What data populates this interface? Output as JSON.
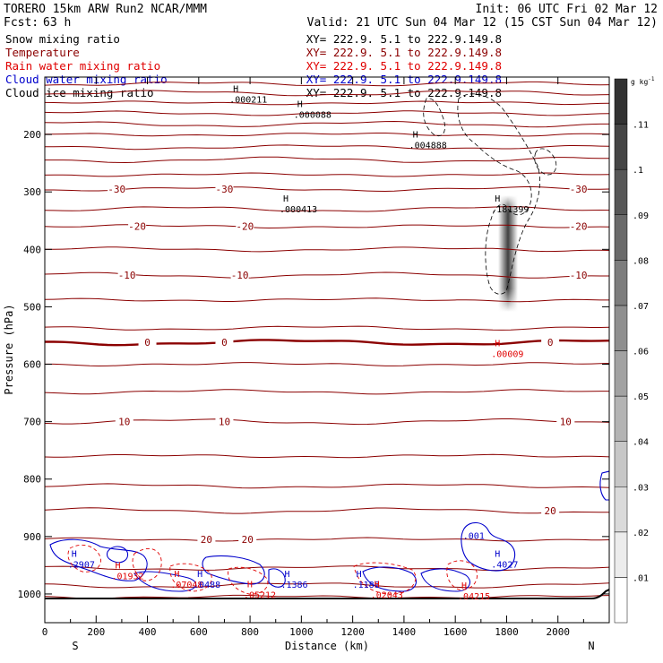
{
  "header": {
    "model": "TORERO  15km ARW   Run2    NCAR/MMM",
    "init": "Init: 06 UTC Fri 02 Mar 12",
    "fcst_label": "Fcst:",
    "fcst_value": "63 h",
    "valid": "Valid: 21 UTC Sun 04 Mar 12 (15 CST Sun 04 Mar 12)"
  },
  "legend": [
    {
      "label": "Snow mixing ratio",
      "xy": "XY= 222.9.  5.1 to 222.9.149.8",
      "color": "#000000"
    },
    {
      "label": "Temperature",
      "xy": "XY= 222.9.  5.1 to 222.9.149.8",
      "color": "#8b0000"
    },
    {
      "label": "Rain water mixing ratio",
      "xy": "XY= 222.9.  5.1 to 222.9.149.8",
      "color": "#e00000"
    },
    {
      "label": "Cloud water mixing ratio",
      "xy": "XY= 222.9.  5.1 to 222.9.149.8",
      "color": "#0000cc"
    },
    {
      "label": "Cloud ice mixing ratio",
      "xy": "XY= 222.9.  5.1 to 222.9.149.8",
      "color": "#000000"
    }
  ],
  "colors": {
    "temperature": "#8b0000",
    "rain": "#e00000",
    "cloud_water": "#0000cc",
    "black": "#000000"
  },
  "chart_data": {
    "type": "contour",
    "xlabel": "Distance (km)",
    "ylabel": "Pressure (hPa)",
    "xlim": [
      0,
      2200
    ],
    "ylim": [
      1050,
      100
    ],
    "x_ticks": [
      0,
      200,
      400,
      600,
      800,
      1000,
      1200,
      1400,
      1600,
      1800,
      2000
    ],
    "y_ticks": [
      200,
      300,
      400,
      500,
      600,
      700,
      800,
      900,
      1000
    ],
    "x_end_labels": {
      "left": "S",
      "right": "N"
    },
    "colorbar": {
      "unit": "g kg",
      "unit_exp": "-1",
      "ticks": [
        ".01",
        ".02",
        ".03",
        ".04",
        ".05",
        ".06",
        ".07",
        ".08",
        ".09",
        ".1",
        ".11"
      ],
      "tick_values": [
        0.01,
        0.02,
        0.03,
        0.04,
        0.05,
        0.06,
        0.07,
        0.08,
        0.09,
        0.1,
        0.11
      ]
    },
    "temperature_contours": [
      {
        "p": 95
      },
      {
        "p": 112
      },
      {
        "p": 128
      },
      {
        "p": 145
      },
      {
        "p": 163
      },
      {
        "p": 182
      },
      {
        "p": 200
      },
      {
        "p": 222
      },
      {
        "p": 244
      },
      {
        "p": 270
      },
      {
        "p": 295,
        "label": "-30",
        "label_x": [
          280,
          700,
          2080
        ]
      },
      {
        "p": 330
      },
      {
        "p": 360,
        "label": "-20",
        "label_x": [
          360,
          780,
          2080
        ]
      },
      {
        "p": 400
      },
      {
        "p": 445,
        "label": "-10",
        "label_x": [
          320,
          760,
          2080
        ]
      },
      {
        "p": 488
      },
      {
        "p": 537
      },
      {
        "p": 562,
        "label": "0",
        "label_x": [
          400,
          700,
          1970
        ],
        "bold": true
      },
      {
        "p": 600
      },
      {
        "p": 648
      },
      {
        "p": 700,
        "label": "10",
        "label_x": [
          310,
          700,
          2030
        ]
      },
      {
        "p": 760
      },
      {
        "p": 812
      },
      {
        "p": 855,
        "label": "20",
        "label_x": [
          1970
        ]
      },
      {
        "p": 905,
        "label": "20",
        "label_x": [
          630,
          790
        ]
      },
      {
        "p": 955
      },
      {
        "p": 985
      },
      {
        "p": 1005
      }
    ],
    "maxima_labels": [
      {
        "x": 720,
        "p": 135,
        "symbol": "H",
        "value": ".000211",
        "color": "#000000"
      },
      {
        "x": 970,
        "p": 162,
        "symbol": "H",
        "value": ".000088",
        "color": "#000000"
      },
      {
        "x": 1420,
        "p": 215,
        "symbol": "H",
        "value": ".004888",
        "color": "#000000"
      },
      {
        "x": 915,
        "p": 326,
        "symbol": "H",
        "value": ".000413",
        "color": "#000000"
      },
      {
        "x": 1740,
        "p": 326,
        "symbol": "H",
        "value": ".181399",
        "color": "#000000"
      },
      {
        "x": 1740,
        "p": 578,
        "symbol": "H",
        "value": ".00009",
        "color": "#e00000"
      },
      {
        "x": 90,
        "p": 945,
        "symbol": "H",
        "value": ".2907",
        "color": "#0000cc"
      },
      {
        "x": 260,
        "p": 965,
        "symbol": "H",
        "value": ".01932",
        "color": "#e00000"
      },
      {
        "x": 490,
        "p": 980,
        "symbol": "H",
        "value": ".07048",
        "color": "#e00000"
      },
      {
        "x": 580,
        "p": 980,
        "symbol": "H",
        "value": ".0488",
        "color": "#0000cc"
      },
      {
        "x": 775,
        "p": 998,
        "symbol": "H",
        "value": ".05212",
        "color": "#e00000"
      },
      {
        "x": 920,
        "p": 980,
        "symbol": "H",
        "value": ".1386",
        "color": "#0000cc"
      },
      {
        "x": 1200,
        "p": 980,
        "symbol": "H",
        "value": ".1188",
        "color": "#0000cc"
      },
      {
        "x": 1270,
        "p": 998,
        "symbol": "H",
        "value": ".02043",
        "color": "#e00000"
      },
      {
        "x": 1610,
        "p": 1000,
        "symbol": "H",
        "value": ".04215",
        "color": "#e00000"
      },
      {
        "x": 1630,
        "p": 895,
        "symbol": "",
        "value": ".001",
        "color": "#0000cc"
      },
      {
        "x": 1740,
        "p": 945,
        "symbol": "H",
        "value": ".4027",
        "color": "#0000cc"
      }
    ]
  }
}
